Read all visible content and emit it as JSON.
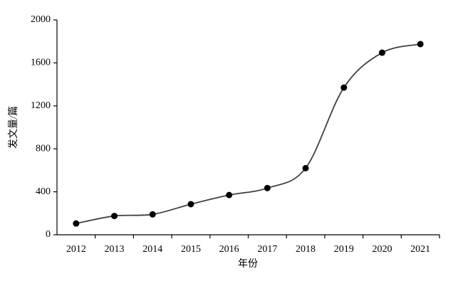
{
  "chart_data": {
    "type": "line",
    "x_label": "年份",
    "y_label": "发文量/篇",
    "categories": [
      "2012",
      "2013",
      "2014",
      "2015",
      "2016",
      "2017",
      "2018",
      "2019",
      "2020",
      "2021"
    ],
    "values": [
      105,
      175,
      190,
      285,
      370,
      435,
      620,
      1370,
      1695,
      1775
    ],
    "color": "#404040",
    "marker_color": "#000000",
    "ylim": [
      0,
      2000
    ],
    "yticks": [
      0,
      400,
      800,
      1200,
      1600,
      2000
    ],
    "smooth": true
  }
}
